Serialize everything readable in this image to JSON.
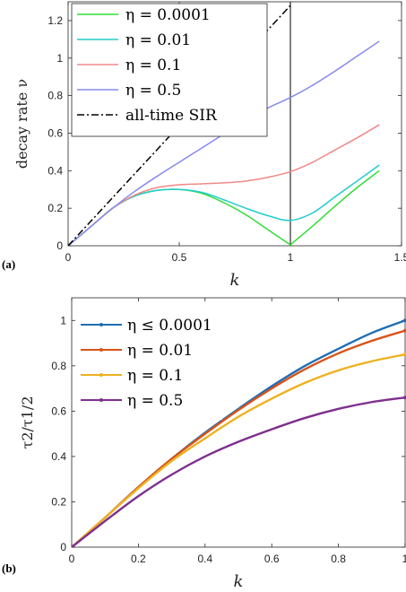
{
  "chart_data": [
    {
      "panel_label": "(a)",
      "type": "line",
      "xlabel": "k",
      "ylabel": "decay rate ν",
      "xlim": [
        0,
        1.5
      ],
      "ylim": [
        0,
        1.3
      ],
      "xticks": [
        "0",
        "0.5",
        "1",
        "1.5"
      ],
      "yticks": [
        "0",
        "0.2",
        "0.4",
        "0.6",
        "0.8",
        "1",
        "1.2"
      ],
      "xtick_values": [
        0,
        0.5,
        1,
        1.5
      ],
      "ytick_values": [
        0,
        0.2,
        0.4,
        0.6,
        0.8,
        1,
        1.2
      ],
      "legend_position": "top-left",
      "vertical_line_x": 1,
      "series": [
        {
          "name": "η = 0.0001",
          "color": "#33dd33",
          "style": "solid",
          "x": [
            0,
            0.1,
            0.2,
            0.3,
            0.4,
            0.5,
            0.6,
            0.7,
            0.8,
            0.9,
            1.0,
            1.1,
            1.2,
            1.3,
            1.4
          ],
          "y": [
            0,
            0.1,
            0.2,
            0.265,
            0.295,
            0.3,
            0.28,
            0.23,
            0.165,
            0.085,
            0.005,
            0.105,
            0.21,
            0.31,
            0.4
          ]
        },
        {
          "name": "η = 0.01",
          "color": "#22cccc",
          "style": "solid",
          "x": [
            0,
            0.1,
            0.2,
            0.3,
            0.4,
            0.5,
            0.6,
            0.7,
            0.8,
            0.9,
            1.0,
            1.1,
            1.2,
            1.3,
            1.4
          ],
          "y": [
            0,
            0.1,
            0.2,
            0.265,
            0.295,
            0.3,
            0.285,
            0.245,
            0.2,
            0.16,
            0.135,
            0.175,
            0.26,
            0.345,
            0.43
          ]
        },
        {
          "name": "η = 0.1",
          "color": "#f08888",
          "style": "solid",
          "x": [
            0,
            0.1,
            0.2,
            0.3,
            0.4,
            0.5,
            0.6,
            0.7,
            0.8,
            0.9,
            1.0,
            1.1,
            1.2,
            1.3,
            1.4
          ],
          "y": [
            0,
            0.1,
            0.2,
            0.27,
            0.31,
            0.325,
            0.33,
            0.335,
            0.345,
            0.365,
            0.395,
            0.445,
            0.51,
            0.575,
            0.645
          ]
        },
        {
          "name": "η = 0.5",
          "color": "#8888ee",
          "style": "solid",
          "x": [
            0,
            0.1,
            0.2,
            0.3,
            0.4,
            0.5,
            0.6,
            0.7,
            0.8,
            0.9,
            1.0,
            1.1,
            1.2,
            1.3,
            1.4
          ],
          "y": [
            0,
            0.1,
            0.2,
            0.29,
            0.37,
            0.445,
            0.52,
            0.595,
            0.67,
            0.735,
            0.79,
            0.855,
            0.93,
            1.01,
            1.09
          ]
        },
        {
          "name": "all-time SIR",
          "color": "#000000",
          "style": "dashdot",
          "x": [
            0,
            1.0
          ],
          "y": [
            0,
            1.28
          ]
        }
      ]
    },
    {
      "panel_label": "(b)",
      "type": "line",
      "xlabel": "k",
      "ylabel": "τ2/τ1/2",
      "xlim": [
        0,
        1
      ],
      "ylim": [
        0,
        1.1
      ],
      "xticks": [
        "0",
        "0.2",
        "0.4",
        "0.6",
        "0.8",
        "1"
      ],
      "yticks": [
        "0",
        "0.2",
        "0.4",
        "0.6",
        "0.8",
        "1"
      ],
      "xtick_values": [
        0,
        0.2,
        0.4,
        0.6,
        0.8,
        1
      ],
      "ytick_values": [
        0,
        0.2,
        0.4,
        0.6,
        0.8,
        1
      ],
      "legend_position": "top-left",
      "series": [
        {
          "name": "η ≤ 0.0001",
          "color": "#1f6fb4",
          "style": "solid",
          "x": [
            0,
            0.1,
            0.2,
            0.3,
            0.4,
            0.5,
            0.6,
            0.7,
            0.8,
            0.9,
            1.0
          ],
          "y": [
            0,
            0.13,
            0.265,
            0.39,
            0.505,
            0.61,
            0.71,
            0.8,
            0.875,
            0.945,
            1.0
          ]
        },
        {
          "name": "η = 0.01",
          "color": "#d95319",
          "style": "solid",
          "x": [
            0,
            0.1,
            0.2,
            0.3,
            0.4,
            0.5,
            0.6,
            0.7,
            0.8,
            0.9,
            1.0
          ],
          "y": [
            0,
            0.13,
            0.265,
            0.39,
            0.5,
            0.605,
            0.7,
            0.785,
            0.855,
            0.91,
            0.955
          ]
        },
        {
          "name": "η = 0.1",
          "color": "#edb120",
          "style": "solid",
          "x": [
            0,
            0.1,
            0.2,
            0.3,
            0.4,
            0.5,
            0.6,
            0.7,
            0.8,
            0.9,
            1.0
          ],
          "y": [
            0,
            0.13,
            0.26,
            0.38,
            0.48,
            0.575,
            0.655,
            0.725,
            0.78,
            0.82,
            0.85
          ]
        },
        {
          "name": "η = 0.5",
          "color": "#7e2f8e",
          "style": "solid",
          "x": [
            0,
            0.1,
            0.2,
            0.3,
            0.4,
            0.5,
            0.6,
            0.7,
            0.8,
            0.9,
            1.0
          ],
          "y": [
            0,
            0.115,
            0.225,
            0.32,
            0.4,
            0.465,
            0.52,
            0.57,
            0.61,
            0.64,
            0.66
          ]
        }
      ]
    }
  ]
}
